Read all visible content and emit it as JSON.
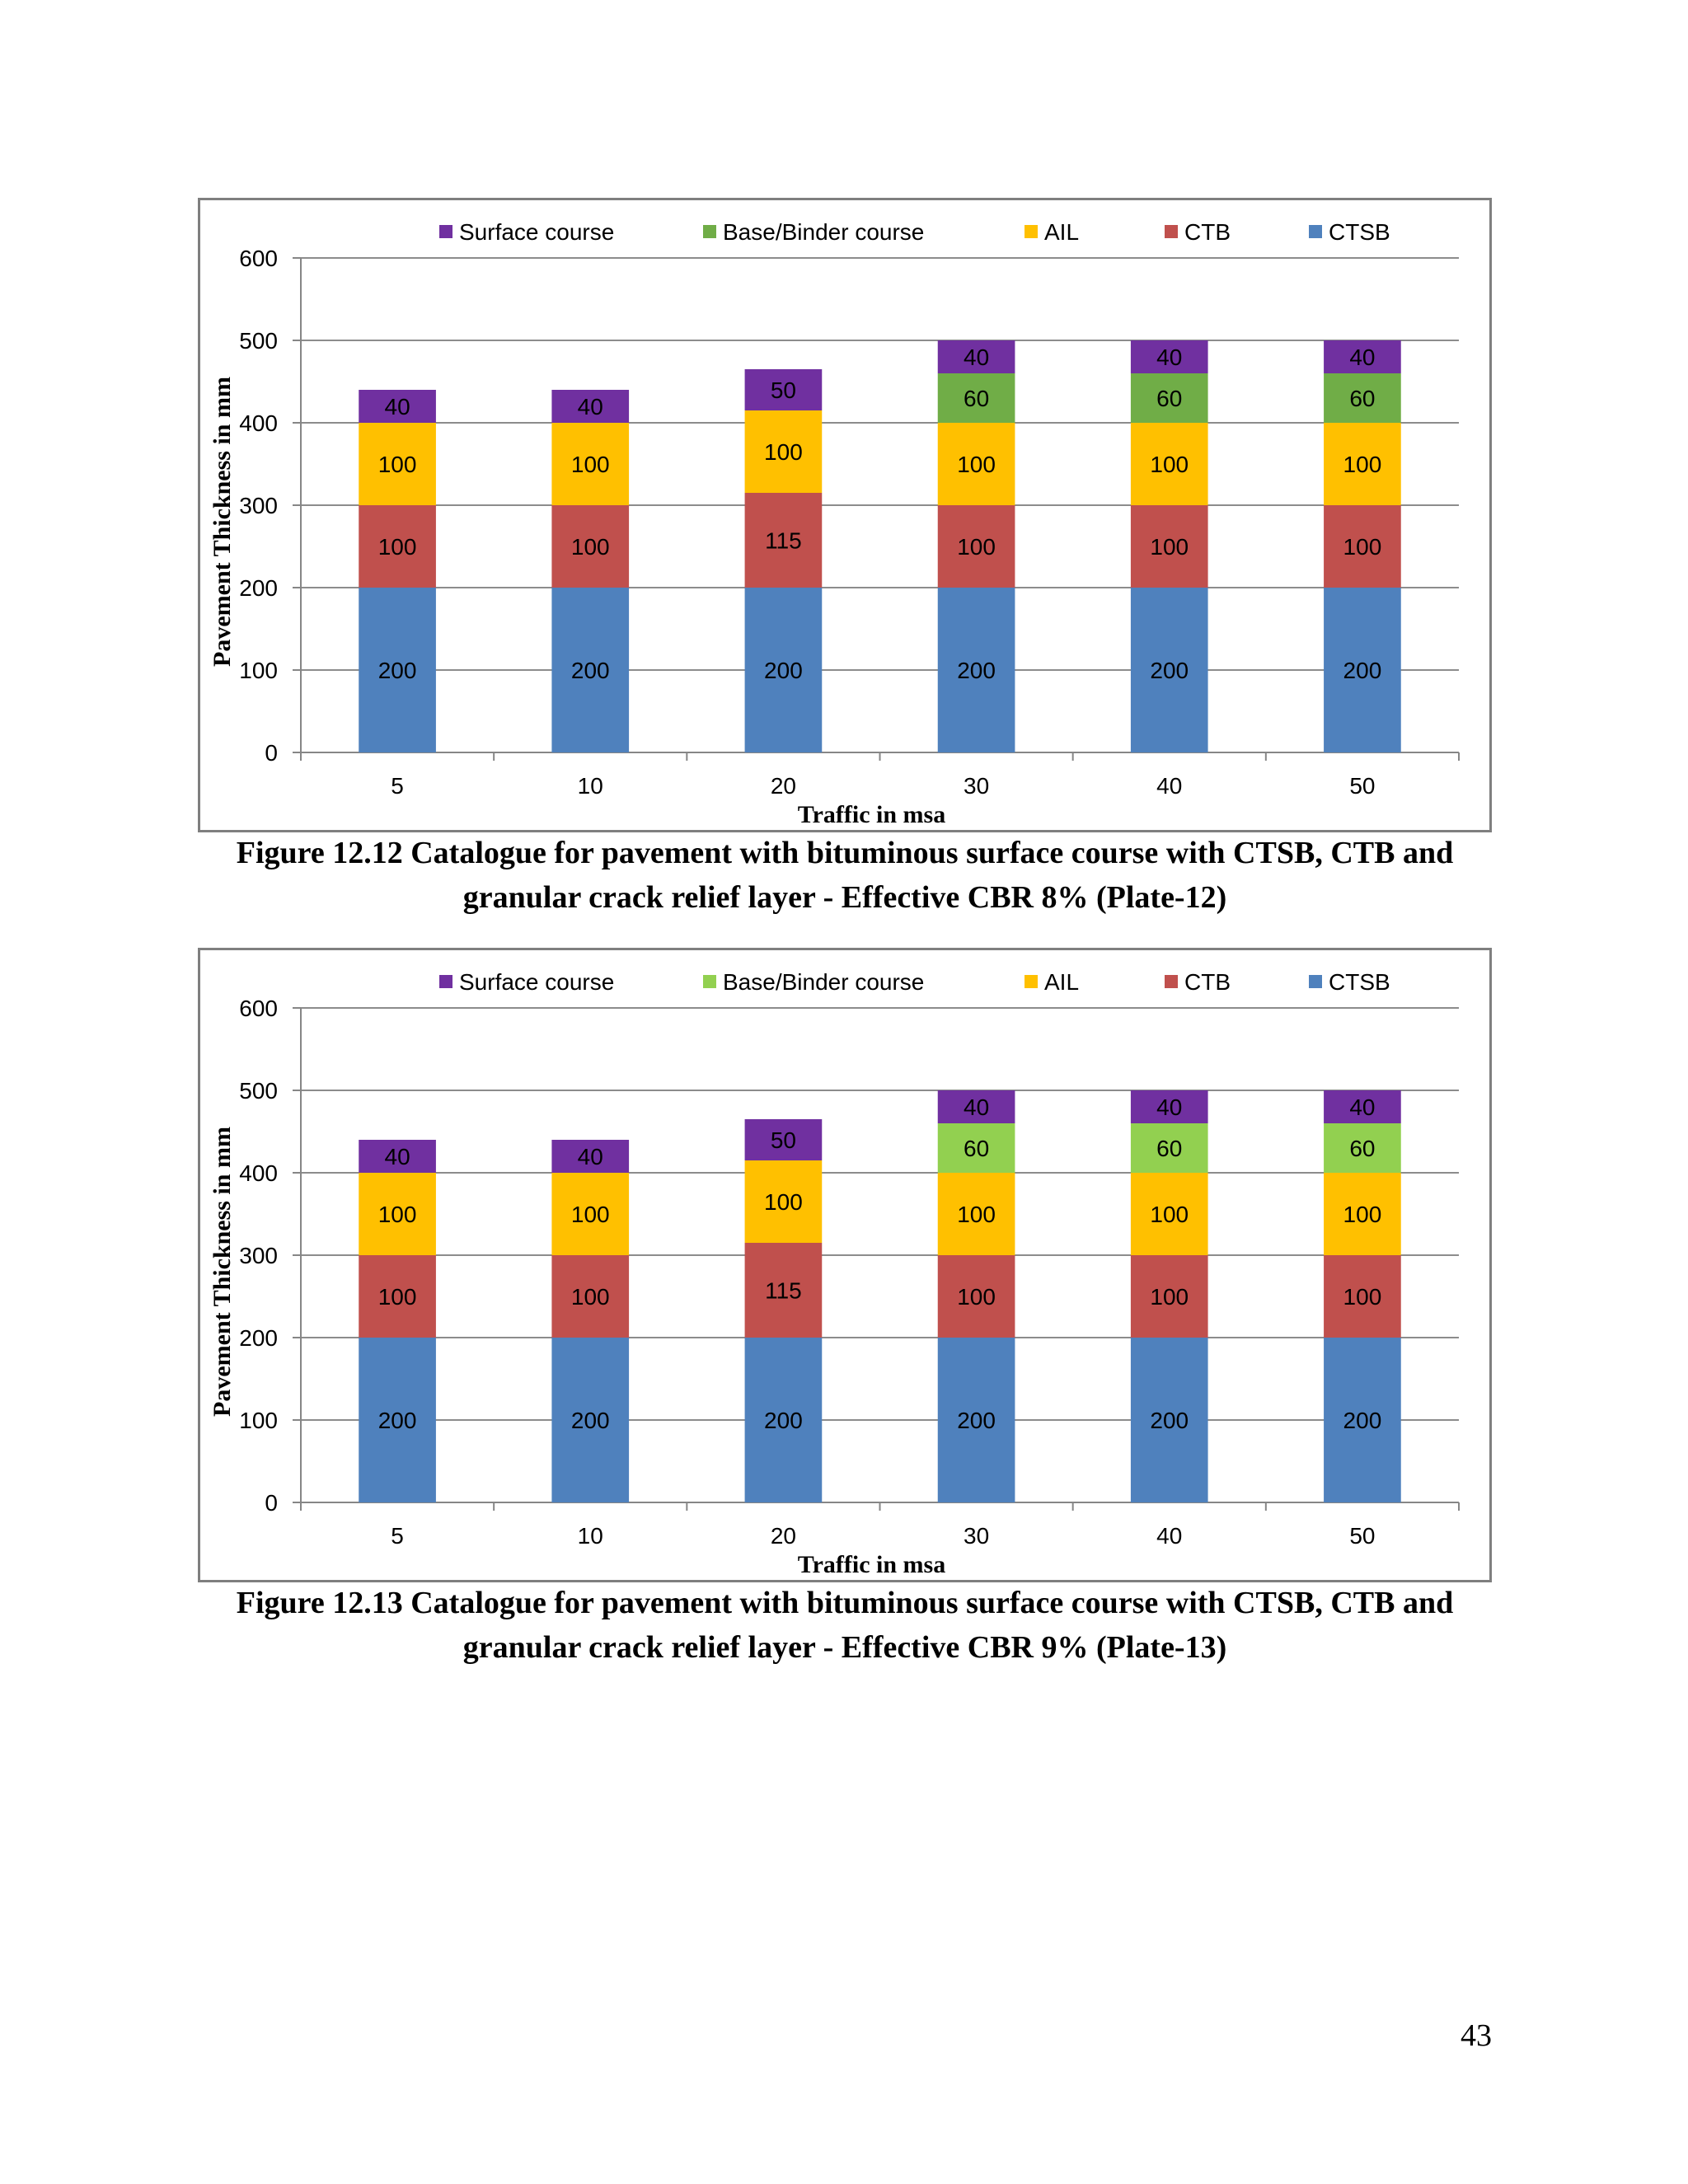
{
  "chart_data": [
    {
      "type": "bar",
      "stacked": true,
      "id": "figure-12-12",
      "categories": [
        "5",
        "10",
        "20",
        "30",
        "40",
        "50"
      ],
      "series": [
        {
          "name": "CTSB",
          "color": "#4f81bd",
          "values": [
            200,
            200,
            200,
            200,
            200,
            200
          ]
        },
        {
          "name": "CTB",
          "color": "#c0504d",
          "values": [
            100,
            100,
            115,
            100,
            100,
            100
          ]
        },
        {
          "name": "AIL",
          "color": "#ffc000",
          "values": [
            100,
            100,
            100,
            100,
            100,
            100
          ]
        },
        {
          "name": "Base/Binder course",
          "color": "#70ad47",
          "values": [
            0,
            0,
            0,
            60,
            60,
            60
          ]
        },
        {
          "name": "Surface course",
          "color": "#7030a0",
          "values": [
            40,
            40,
            50,
            40,
            40,
            40
          ]
        }
      ],
      "legend_order": [
        "Surface course",
        "Base/Binder course",
        "AIL",
        "CTB",
        "CTSB"
      ],
      "legend_position": "top",
      "xlabel": "Traffic in msa",
      "ylabel": "Pavement Thickness in mm",
      "ylim": [
        0,
        600
      ],
      "yticks": [
        "0",
        "100",
        "200",
        "300",
        "400",
        "500",
        "600"
      ],
      "grid": true,
      "caption": "Figure 12.12 Catalogue for pavement with bituminous surface course with CTSB, CTB and granular crack relief layer - Effective CBR 8% (Plate-12)"
    },
    {
      "type": "bar",
      "stacked": true,
      "id": "figure-12-13",
      "categories": [
        "5",
        "10",
        "20",
        "30",
        "40",
        "50"
      ],
      "series": [
        {
          "name": "CTSB",
          "color": "#4f81bd",
          "values": [
            200,
            200,
            200,
            200,
            200,
            200
          ]
        },
        {
          "name": "CTB",
          "color": "#c0504d",
          "values": [
            100,
            100,
            115,
            100,
            100,
            100
          ]
        },
        {
          "name": "AIL",
          "color": "#ffc000",
          "values": [
            100,
            100,
            100,
            100,
            100,
            100
          ]
        },
        {
          "name": "Base/Binder course",
          "color": "#92d050",
          "values": [
            0,
            0,
            0,
            60,
            60,
            60
          ]
        },
        {
          "name": "Surface course",
          "color": "#7030a0",
          "values": [
            40,
            40,
            50,
            40,
            40,
            40
          ]
        }
      ],
      "legend_order": [
        "Surface course",
        "Base/Binder course",
        "AIL",
        "CTB",
        "CTSB"
      ],
      "legend_position": "top",
      "xlabel": "Traffic in msa",
      "ylabel": "Pavement Thickness in mm",
      "ylim": [
        0,
        600
      ],
      "yticks": [
        "0",
        "100",
        "200",
        "300",
        "400",
        "500",
        "600"
      ],
      "grid": true,
      "caption": "Figure 12.13 Catalogue for pavement with bituminous surface course with CTSB, CTB and granular crack relief layer - Effective CBR 9% (Plate-13)"
    }
  ],
  "captions": {
    "fig1_line1": "Figure 12.12 Catalogue for pavement with bituminous surface course with CTSB, CTB and",
    "fig1_line2": "granular crack relief layer - Effective CBR 8% (Plate-12)",
    "fig2_line1": "Figure 12.13 Catalogue for pavement with bituminous surface course with CTSB, CTB and",
    "fig2_line2": "granular crack relief layer - Effective CBR 9% (Plate-13)"
  },
  "page_number": "43"
}
